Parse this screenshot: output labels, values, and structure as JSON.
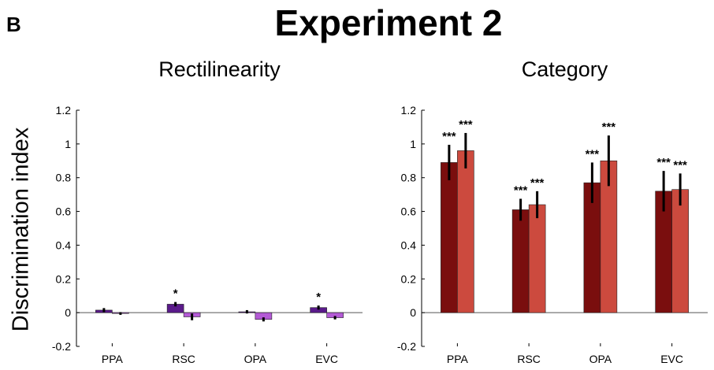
{
  "figure": {
    "panel_label": "B",
    "title": "Experiment 2",
    "ylabel": "Discrimination index"
  },
  "colors": {
    "rect_dark": "#5a1a8a",
    "rect_light": "#b45ad6",
    "cat_dark": "#7a0e0e",
    "cat_light": "#cc4a3e",
    "error_bar": "#000000",
    "axis": "#000000"
  },
  "chart_data": [
    {
      "type": "bar",
      "title": "Rectilinearity",
      "xlabel": "",
      "ylabel": "Discrimination index",
      "categories": [
        "PPA",
        "RSC",
        "OPA",
        "EVC"
      ],
      "ylim": [
        -0.2,
        1.2
      ],
      "yticks": [
        -0.2,
        0,
        0.2,
        0.4,
        0.6,
        0.8,
        1,
        1.2
      ],
      "ytick_labels": [
        "-0.2",
        "0",
        "0.2",
        "0.4",
        "0.6",
        "0.8",
        "1",
        "1.2"
      ],
      "series": [
        {
          "values": [
            0.015,
            0.05,
            0.005,
            0.03
          ],
          "errors": [
            0.012,
            0.013,
            0.01,
            0.012
          ],
          "significance": [
            "",
            "*",
            "",
            "*"
          ]
        },
        {
          "values": [
            -0.005,
            -0.025,
            -0.04,
            -0.03
          ],
          "errors": [
            0.008,
            0.02,
            0.012,
            0.01
          ],
          "significance": [
            "",
            "",
            "",
            ""
          ]
        }
      ]
    },
    {
      "type": "bar",
      "title": "Category",
      "xlabel": "",
      "ylabel": "",
      "categories": [
        "PPA",
        "RSC",
        "OPA",
        "EVC"
      ],
      "ylim": [
        -0.2,
        1.2
      ],
      "yticks": [
        -0.2,
        0,
        0.2,
        0.4,
        0.6,
        0.8,
        1,
        1.2
      ],
      "ytick_labels": [
        "-0.2",
        "0",
        "0.2",
        "0.4",
        "0.6",
        "0.8",
        "1",
        "1.2"
      ],
      "series": [
        {
          "values": [
            0.89,
            0.61,
            0.77,
            0.72
          ],
          "errors": [
            0.105,
            0.065,
            0.12,
            0.12
          ],
          "significance": [
            "***",
            "***",
            "***",
            "***"
          ]
        },
        {
          "values": [
            0.96,
            0.64,
            0.9,
            0.73
          ],
          "errors": [
            0.105,
            0.08,
            0.15,
            0.095
          ],
          "significance": [
            "***",
            "***",
            "***",
            "***"
          ]
        }
      ]
    }
  ]
}
